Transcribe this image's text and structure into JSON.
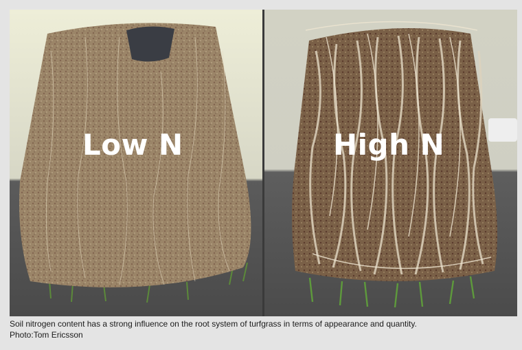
{
  "photos": [
    {
      "label": "Low N",
      "icon": "root-ball-low-nitrogen"
    },
    {
      "label": "High N",
      "icon": "root-ball-high-nitrogen"
    }
  ],
  "caption": {
    "text": "Soil nitrogen content has a strong influence on the root system of turfgrass in terms of appearance and quantity.",
    "credit": "Photo:Tom Ericsson"
  },
  "colors": {
    "frame_background": "#e4e4e4",
    "soil": "#8a7256",
    "roots": "#d8cdb5",
    "grass": "#5c8a3a",
    "label": "#ffffff"
  }
}
